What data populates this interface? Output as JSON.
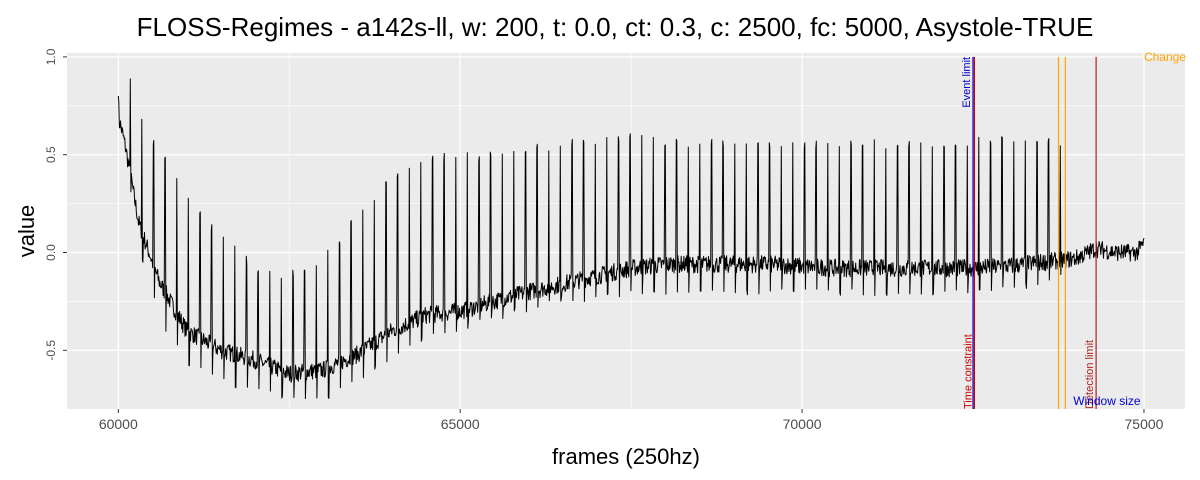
{
  "chart_data": {
    "type": "line",
    "title": "FLOSS-Regimes - a142s-ll, w: 200, t: 0.0, ct: 0.3, c: 2500, fc: 5000, Asystole-TRUE",
    "xlabel": "frames (250hz)",
    "ylabel": "value",
    "xlim": [
      59250,
      75600
    ],
    "ylim": [
      -0.8,
      1.02
    ],
    "x_ticks": [
      60000,
      65000,
      70000,
      75000
    ],
    "x_tick_labels": [
      "60000",
      "65000",
      "70000",
      "75000"
    ],
    "y_ticks": [
      -0.5,
      0.0,
      0.5,
      1.0
    ],
    "y_tick_labels": [
      "-0.5",
      "0.0",
      "0.5",
      "1.0"
    ],
    "grid": true,
    "series": [
      {
        "color": "#000000",
        "envelope": {
          "x": [
            60000,
            60100,
            60300,
            60600,
            61000,
            61500,
            62000,
            62500,
            63000,
            63500,
            64000,
            64500,
            65000,
            65500,
            66000,
            66500,
            67000,
            67500,
            68000,
            68500,
            69000,
            69500,
            70000,
            70500,
            71000,
            71500,
            72000,
            72500,
            73000,
            73500,
            73800,
            74000,
            74300,
            74600,
            74900,
            75000
          ],
          "baseline": [
            0.7,
            0.55,
            0.15,
            -0.15,
            -0.4,
            -0.5,
            -0.55,
            -0.62,
            -0.6,
            -0.52,
            -0.4,
            -0.32,
            -0.3,
            -0.25,
            -0.2,
            -0.16,
            -0.12,
            -0.08,
            -0.06,
            -0.06,
            -0.06,
            -0.06,
            -0.07,
            -0.08,
            -0.08,
            -0.08,
            -0.08,
            -0.08,
            -0.07,
            -0.05,
            -0.04,
            -0.03,
            0.02,
            0.0,
            0.0,
            0.05
          ],
          "peak": [
            0.8,
            1.0,
            0.72,
            0.55,
            0.3,
            0.1,
            -0.05,
            -0.1,
            0.0,
            0.2,
            0.42,
            0.5,
            0.52,
            0.52,
            0.55,
            0.58,
            0.6,
            0.62,
            0.58,
            0.58,
            0.58,
            0.58,
            0.58,
            0.58,
            0.58,
            0.58,
            0.55,
            0.6,
            0.6,
            0.6,
            0.58,
            0.05,
            0.05,
            0.05,
            0.05,
            0.1
          ],
          "trough": [
            0.65,
            0.5,
            0.0,
            -0.35,
            -0.58,
            -0.67,
            -0.72,
            -0.78,
            -0.76,
            -0.68,
            -0.55,
            -0.45,
            -0.4,
            -0.35,
            -0.3,
            -0.27,
            -0.24,
            -0.22,
            -0.22,
            -0.22,
            -0.22,
            -0.22,
            -0.22,
            -0.22,
            -0.22,
            -0.22,
            -0.22,
            -0.22,
            -0.2,
            -0.18,
            -0.15,
            -0.1,
            -0.08,
            -0.06,
            -0.05,
            -0.02
          ]
        },
        "beat_interval_frames": 170,
        "beats_end_x": 73800
      }
    ],
    "annotations": [
      {
        "x": 72500,
        "color": "#0000CC",
        "label": "Event limit",
        "label_position": "top"
      },
      {
        "x": 72520,
        "color": "#CC0000",
        "label": "Time constraint",
        "label_position": "bottom"
      },
      {
        "x": 73750,
        "color": "#FFA500",
        "label": "",
        "label_position": "none"
      },
      {
        "x": 73850,
        "color": "#FFA500",
        "label": "",
        "label_position": "none"
      },
      {
        "x": 74300,
        "color": "#B22222",
        "label": "Detection limit",
        "label_position": "bottom"
      }
    ],
    "corner_labels": [
      {
        "text": "Change",
        "color": "#FFA500",
        "x": 75000,
        "y": 1.0
      },
      {
        "text": "Window size",
        "color": "#0000CC",
        "x": 74950,
        "y": -0.76
      }
    ],
    "colors": {
      "panel_background": "#EBEBEB",
      "grid_major": "#FFFFFF",
      "line": "#000000"
    }
  }
}
